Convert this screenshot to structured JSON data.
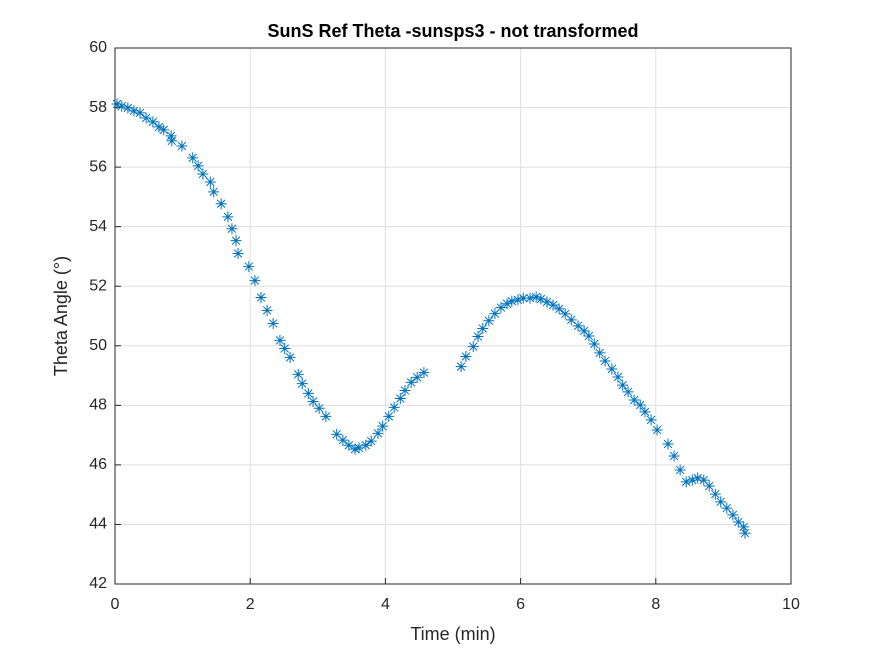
{
  "chart_data": {
    "type": "scatter",
    "title": "SunS Ref Theta -sunsps3 - not transformed",
    "x_label": "Time (min)",
    "y_label": "Theta Angle (°)",
    "xlim": [
      0,
      10
    ],
    "xticks": [
      0,
      2,
      4,
      6,
      8,
      10
    ],
    "ylim": [
      42,
      60
    ],
    "yticks": [
      42,
      44,
      46,
      48,
      50,
      52,
      54,
      56,
      58,
      60
    ],
    "grid": true,
    "marker": "asterisk",
    "series": [
      {
        "color": "#0072bd",
        "x": [
          0.03,
          0.1,
          0.19,
          0.28,
          0.37,
          0.46,
          0.56,
          0.65,
          0.72,
          0.83,
          0.84,
          0.99,
          1.15,
          1.23,
          1.3,
          1.41,
          1.46,
          1.57,
          1.67,
          1.73,
          1.79,
          1.82,
          1.98,
          2.07,
          2.16,
          2.25,
          2.34,
          2.44,
          2.51,
          2.59,
          2.71,
          2.77,
          2.86,
          2.93,
          3.02,
          3.12,
          3.28,
          3.37,
          3.46,
          3.55,
          3.61,
          3.71,
          3.79,
          3.89,
          3.96,
          4.05,
          4.13,
          4.22,
          4.29,
          4.38,
          4.47,
          4.57,
          5.12,
          5.19,
          5.3,
          5.37,
          5.44,
          5.53,
          5.62,
          5.71,
          5.8,
          5.87,
          5.96,
          6.04,
          6.14,
          6.23,
          6.3,
          6.39,
          6.48,
          6.57,
          6.66,
          6.75,
          6.85,
          6.94,
          7.01,
          7.09,
          7.17,
          7.25,
          7.35,
          7.44,
          7.51,
          7.59,
          7.68,
          7.77,
          7.84,
          7.93,
          8.02,
          8.18,
          8.27,
          8.36,
          8.45,
          8.54,
          8.62,
          8.71,
          8.79,
          8.88,
          8.96,
          9.05,
          9.14,
          9.22,
          9.3,
          9.32
        ],
        "values": [
          58.12,
          58.05,
          57.99,
          57.89,
          57.82,
          57.65,
          57.52,
          57.35,
          57.25,
          57.05,
          56.88,
          56.71,
          56.31,
          56.04,
          55.77,
          55.5,
          55.17,
          54.77,
          54.33,
          53.93,
          53.53,
          53.1,
          52.66,
          52.19,
          51.62,
          51.19,
          50.75,
          50.18,
          49.91,
          49.61,
          49.04,
          48.73,
          48.4,
          48.13,
          47.9,
          47.63,
          47.03,
          46.83,
          46.66,
          46.53,
          46.57,
          46.66,
          46.8,
          47.06,
          47.3,
          47.63,
          47.93,
          48.23,
          48.5,
          48.77,
          48.94,
          49.1,
          49.3,
          49.64,
          49.97,
          50.31,
          50.58,
          50.84,
          51.08,
          51.28,
          51.41,
          51.5,
          51.54,
          51.6,
          51.6,
          51.64,
          51.57,
          51.47,
          51.37,
          51.24,
          51.07,
          50.87,
          50.67,
          50.5,
          50.33,
          50.06,
          49.76,
          49.49,
          49.22,
          48.95,
          48.68,
          48.45,
          48.18,
          48.01,
          47.78,
          47.51,
          47.17,
          46.7,
          46.3,
          45.83,
          45.43,
          45.49,
          45.56,
          45.49,
          45.29,
          45.02,
          44.76,
          44.55,
          44.32,
          44.08,
          43.92,
          43.71
        ]
      }
    ]
  }
}
